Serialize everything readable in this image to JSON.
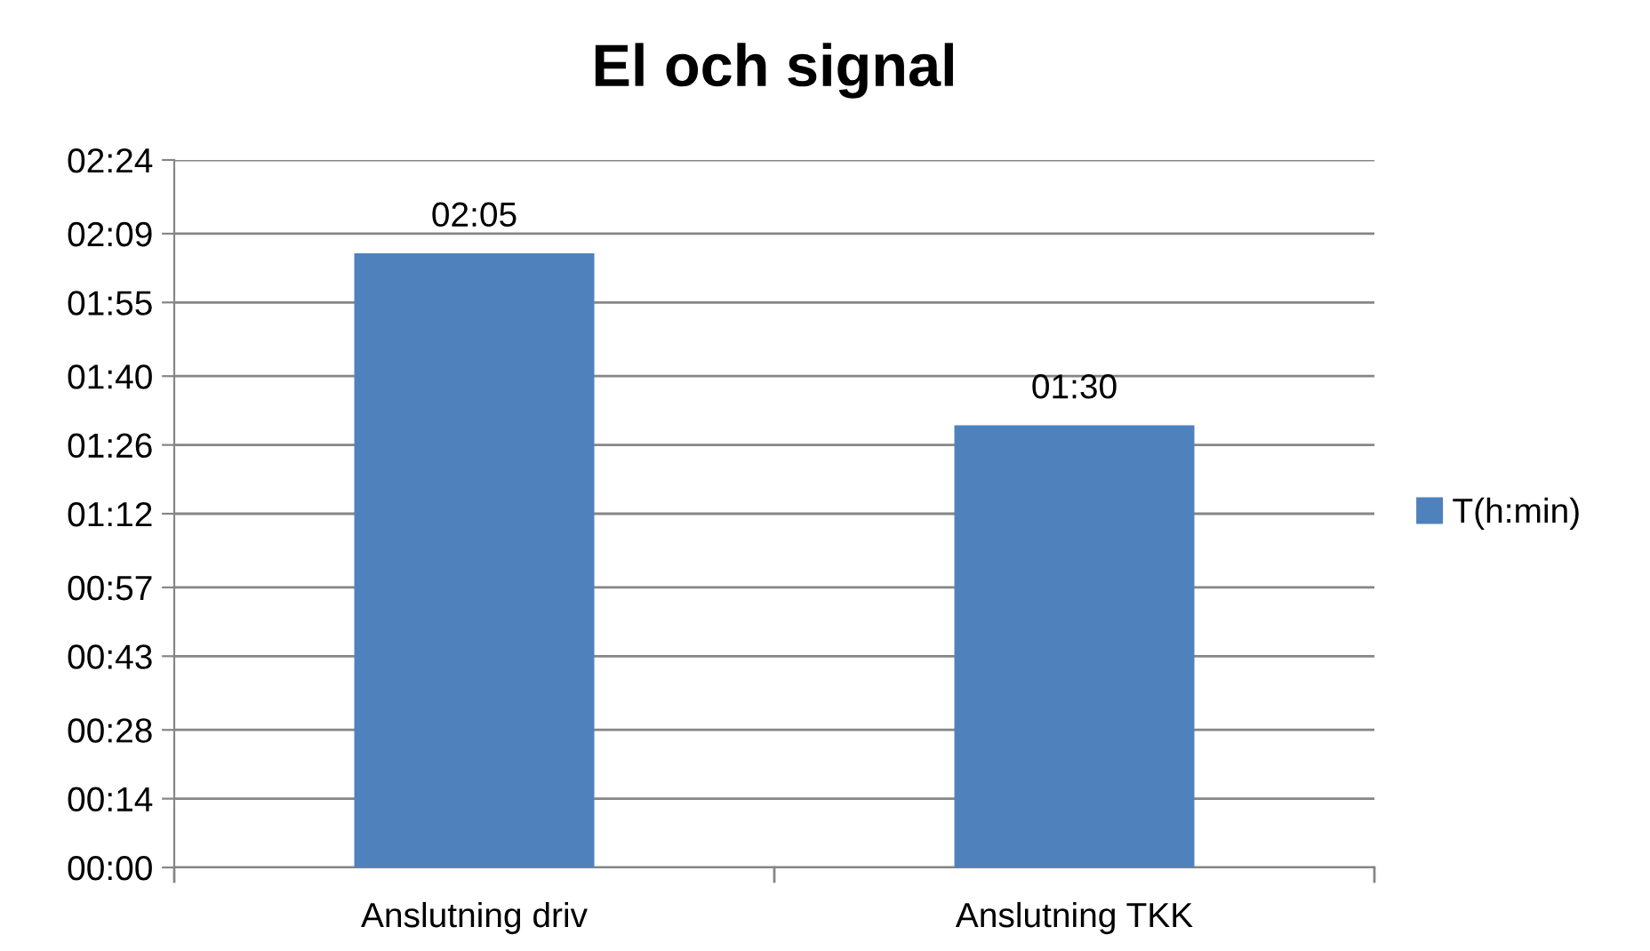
{
  "chart_data": {
    "type": "bar",
    "title": "El och signal",
    "categories": [
      "Anslutning driv",
      "Anslutning TKK"
    ],
    "series": [
      {
        "name": "T(h:min)",
        "color": "#4f81bd",
        "values": [
          125,
          90
        ],
        "value_labels": [
          "02:05",
          "01:30"
        ]
      }
    ],
    "ylim": [
      0,
      144
    ],
    "yticks": [
      {
        "value": 0,
        "label": "00:00"
      },
      {
        "value": 14,
        "label": "00:14"
      },
      {
        "value": 28,
        "label": "00:28"
      },
      {
        "value": 43,
        "label": "00:43"
      },
      {
        "value": 57,
        "label": "00:57"
      },
      {
        "value": 72,
        "label": "01:12"
      },
      {
        "value": 86,
        "label": "01:26"
      },
      {
        "value": 100,
        "label": "01:40"
      },
      {
        "value": 115,
        "label": "01:55"
      },
      {
        "value": 129,
        "label": "02:09"
      },
      {
        "value": 144,
        "label": "02:24"
      }
    ],
    "grid": "y",
    "legend": "right"
  }
}
